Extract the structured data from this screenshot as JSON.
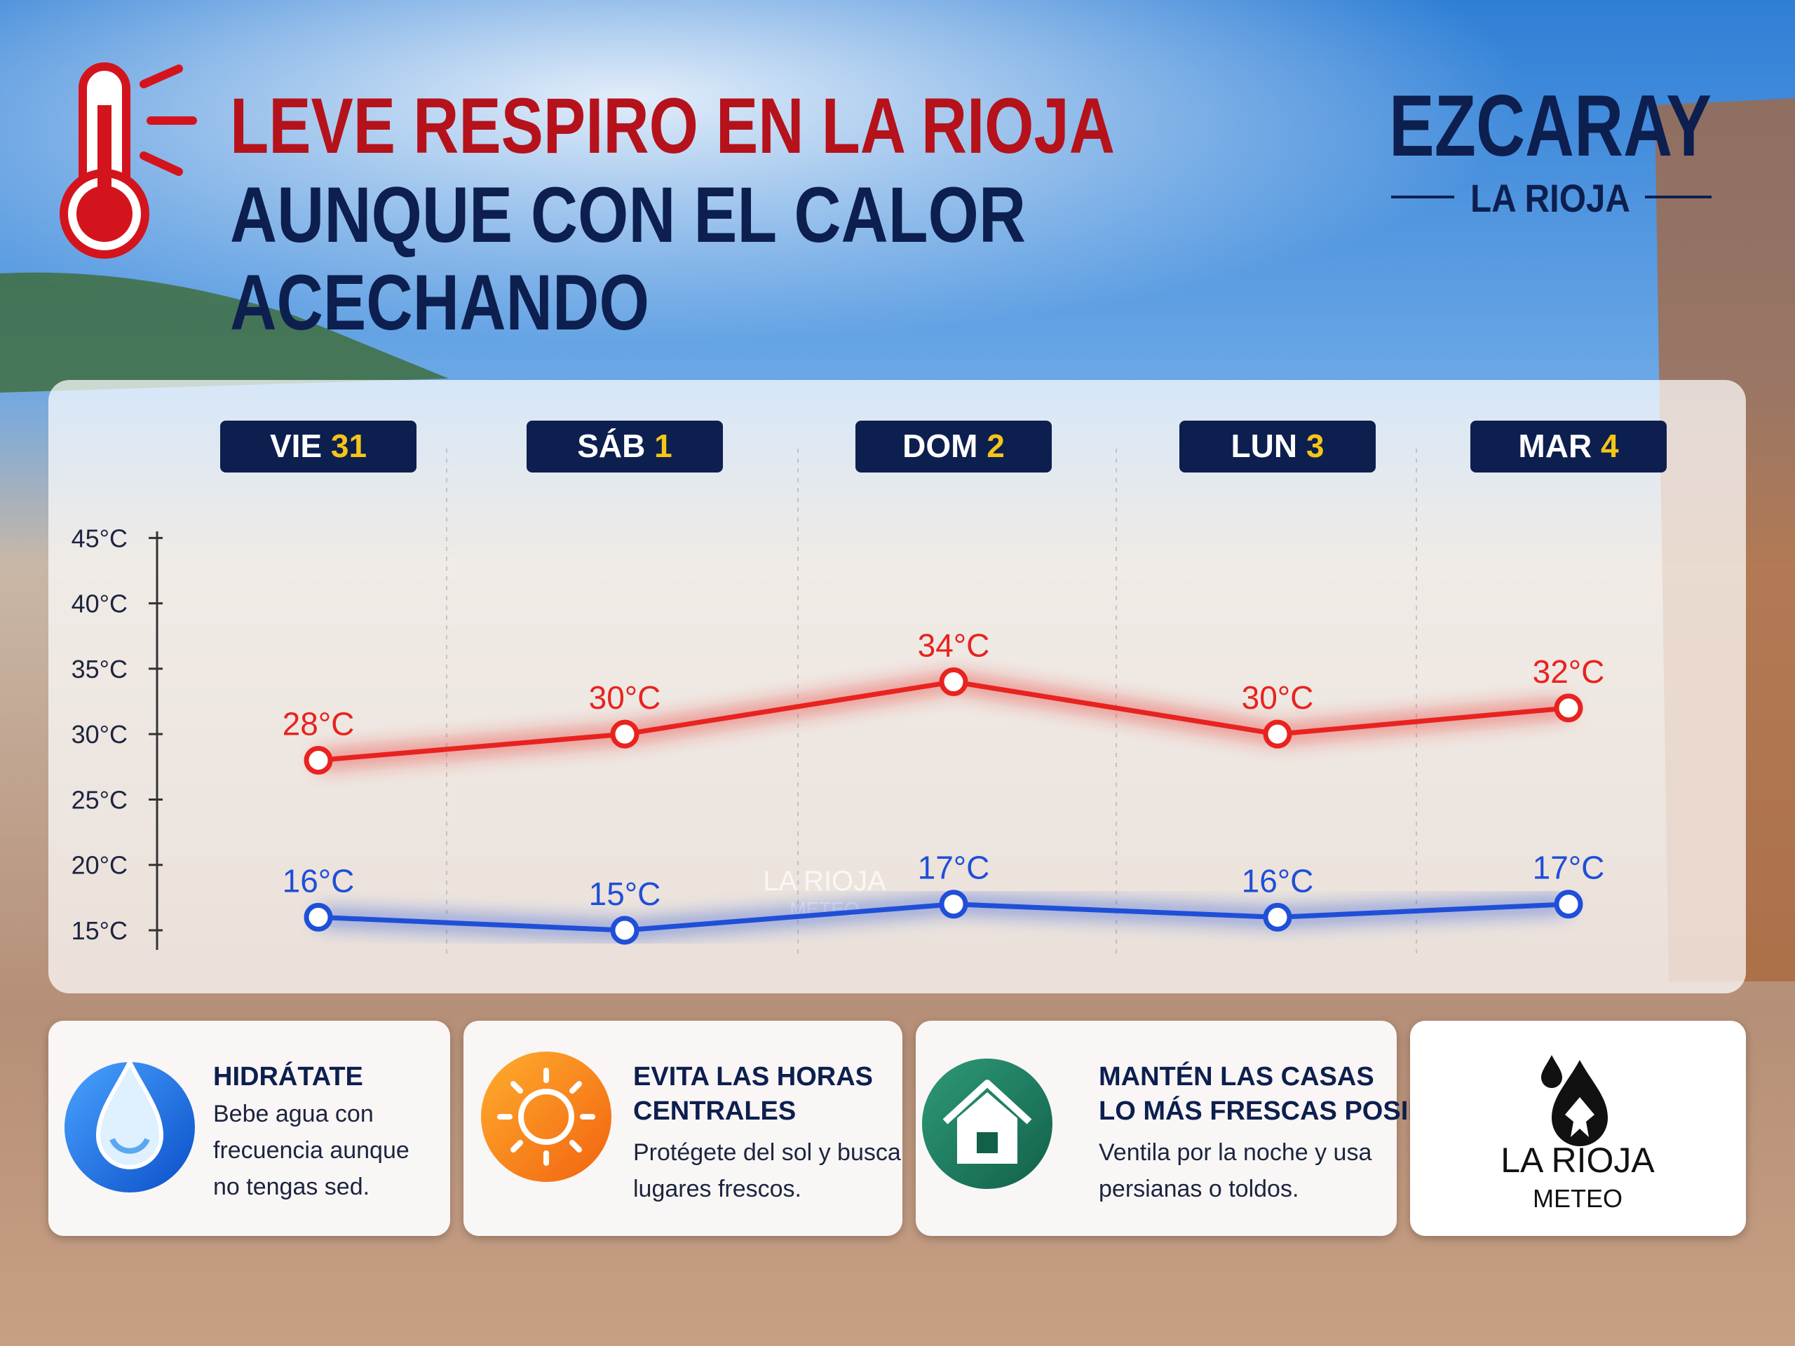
{
  "header": {
    "title_lines": [
      "LEVE RESPIRO EN LA RIOJA",
      "AUNQUE CON EL CALOR",
      "ACECHANDO"
    ],
    "location": "EZCARAY",
    "region": "LA RIOJA"
  },
  "chart_data": {
    "type": "line",
    "categories": [
      "VIE",
      "SÁB",
      "DOM",
      "LUN",
      "MAR"
    ],
    "dates": [
      "31",
      "1",
      "2",
      "3",
      "4"
    ],
    "series": [
      {
        "color": "#e8231f",
        "values": [
          28,
          30,
          34,
          30,
          32
        ],
        "value_labels": [
          "28°C",
          "30°C",
          "34°C",
          "30°C",
          "32°C"
        ]
      },
      {
        "color": "#1f4fd8",
        "values": [
          16,
          15,
          17,
          16,
          17
        ],
        "value_labels": [
          "16°C",
          "15°C",
          "17°C",
          "16°C",
          "17°C"
        ]
      }
    ],
    "ylim": [
      13.5,
      45.5
    ],
    "yticks": [
      {
        "value": 45,
        "label": "45°C"
      },
      {
        "value": 40,
        "label": "40°C"
      },
      {
        "value": 35,
        "label": "35°C"
      },
      {
        "value": 30,
        "label": "30°C"
      },
      {
        "value": 25,
        "label": "25°C"
      },
      {
        "value": 20,
        "label": "20°C"
      },
      {
        "value": 15,
        "label": "15°C"
      }
    ],
    "watermark": [
      "LA RIOJA",
      "METEO"
    ]
  },
  "tips": [
    {
      "title": [
        "HIDRÁTATE"
      ],
      "text": [
        "Bebe agua con",
        "frecuencia aunque",
        "no tengas sed."
      ]
    },
    {
      "title": [
        "EVITA LAS HORAS",
        "CENTRALES"
      ],
      "text": [
        "Protégete del sol y busca",
        "lugares frescos."
      ]
    },
    {
      "title": [
        "MANTÉN LAS CASAS",
        "LO MÁS FRESCAS POSIBLES"
      ],
      "text": [
        "Ventila por la noche y usa",
        "persianas o toldos."
      ]
    }
  ],
  "logo": {
    "name": "LA RIOJA",
    "sub": "METEO"
  }
}
